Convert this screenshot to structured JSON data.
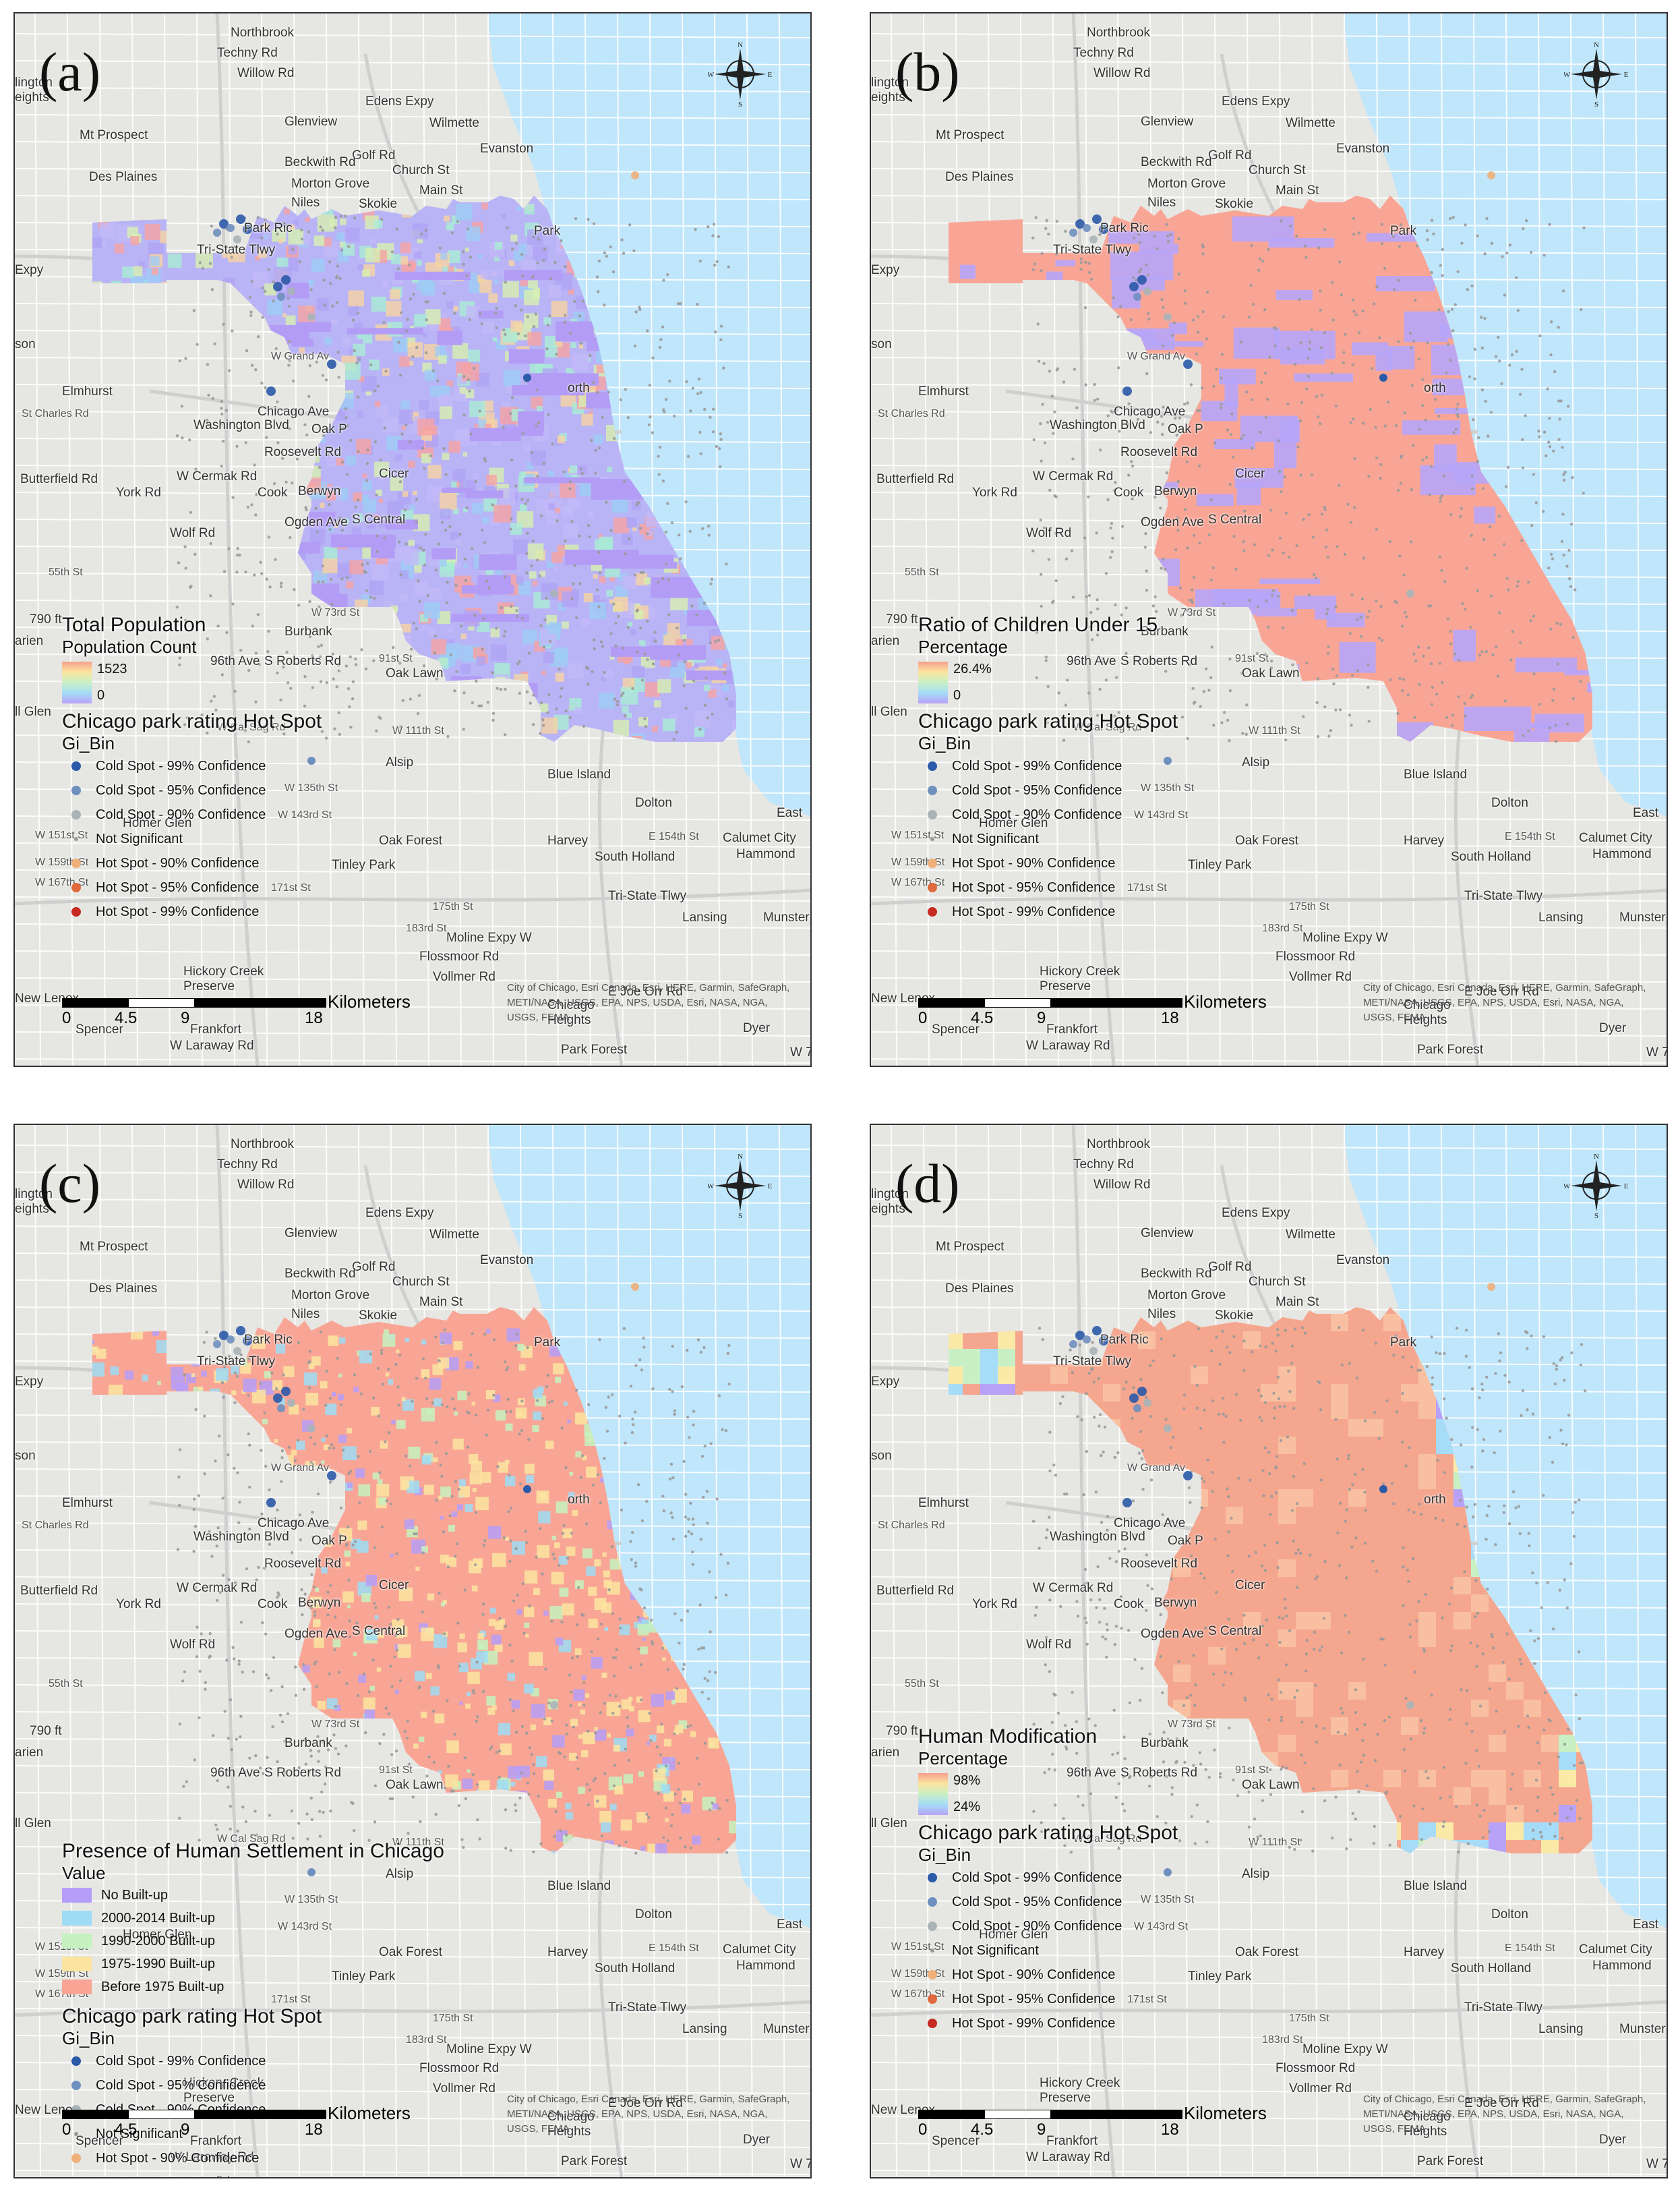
{
  "common": {
    "place_labels": {
      "northbrook": "Northbrook",
      "techny": "Techny Rd",
      "willow": "Willow Rd",
      "arlington": "lington\neights",
      "mt_prospect": "Mt Prospect",
      "glenview": "Glenview",
      "wilmette": "Wilmette",
      "edens": "Edens Expy",
      "evanston": "Evanston",
      "golf": "Golf Rd",
      "church": "Church St",
      "beckwith": "Beckwith Rd",
      "des_plaines": "Des Plaines",
      "morton": "Morton Grove",
      "main": "Main St",
      "niles": "Niles",
      "skokie": "Skokie",
      "park_ridge": "Park Ric",
      "park": "Park",
      "expy": "Expy",
      "tristate": "Tri-State Tlwy",
      "son": "son",
      "grand": "W Grand Av",
      "elmhurst": "Elmhurst",
      "orth": "orth",
      "st_charles": "St Charles Rd",
      "chicago_ave": "Chicago Ave",
      "washington": "Washington Blvd",
      "oak": "Oak P",
      "roosevelt": "Roosevelt Rd",
      "butterfield": "Butterfield Rd",
      "cermak": "W Cermak Rd",
      "cook": "Cook",
      "berwyn": "Berwyn",
      "cicero": "Cicer",
      "york": "York Rd",
      "wolf": "Wolf Rd",
      "ogden": "Ogden Ave",
      "s_central": "S Central",
      "st55": "55th St",
      "ft790": "790 ft",
      "darien": "arien",
      "st73": "W 73rd St",
      "burbank": "Burbank",
      "ave96": "96th Ave",
      "st91": "91st St",
      "roberts": "S Roberts Rd",
      "oak_lawn": "Oak Lawn",
      "glen": "ll Glen",
      "st111": "W 111th St",
      "calsag": "W Cal Sag Rd",
      "alsip": "Alsip",
      "blue_island": "Blue Island",
      "st135": "W 135th St",
      "st143": "W 143rd St",
      "dolton": "Dolton",
      "east": "East",
      "homer": "Homer Glen",
      "st151": "W 151st St",
      "st159": "W 159th St",
      "oak_forest": "Oak Forest",
      "harvey": "Harvey",
      "st154": "E 154th St",
      "calumet": "Calumet City",
      "hammond": "Hammond",
      "south_holland": "South Holland",
      "tinley": "Tinley Park",
      "st167": "W 167th St",
      "st171": "171st St",
      "tristate2": "Tri-State Tlwy",
      "lansing": "Lansing",
      "munster": "Munster",
      "st175": "175th St",
      "st183": "183rd St",
      "moline": "Moline Expy W",
      "flossmoor": "Flossmoor Rd",
      "vollmer": "Vollmer Rd",
      "hickory": "Hickory Creek\nPreserve",
      "new_lenox": "New Lenox",
      "chicago_heights": "Chicago\nHeights",
      "joe_orr": "E Joe Orr Rd",
      "laraway": "W Laraway Rd",
      "park_forest": "Park Forest",
      "dyer": "Dyer",
      "spencer": "Spencer",
      "frankfort": "Frankfort",
      "w7": "W 7"
    },
    "attribution": "City of Chicago, Esri Canada, Esri, HERE, Garmin, SafeGraph, METI/NASA, USGS, EPA, NPS, USDA, Esri, NASA, NGA, USGS, FEMA",
    "scale": {
      "ticks": [
        "0",
        "4.5",
        "9",
        "18"
      ],
      "unit": "Kilometers"
    },
    "compass": {
      "n": "N",
      "s": "S",
      "e": "E",
      "w": "W"
    },
    "gi": {
      "title": "Chicago park rating Hot Spot",
      "field": "Gi_Bin",
      "classes": [
        {
          "label": "Cold Spot - 99% Confidence",
          "color": "#2b5aa8"
        },
        {
          "label": "Cold Spot - 95% Confidence",
          "color": "#6f8fbf"
        },
        {
          "label": "Cold Spot - 90% Confidence",
          "color": "#a9b4b8"
        },
        {
          "label": "Not Significant",
          "color": "#9a9a9a"
        },
        {
          "label": "Hot Spot - 90% Confidence",
          "color": "#f0b07a"
        },
        {
          "label": "Hot Spot - 95% Confidence",
          "color": "#e06a3d"
        },
        {
          "label": "Hot Spot - 99% Confidence",
          "color": "#c62a22"
        }
      ]
    },
    "colors": {
      "water": "#bfe6fb",
      "land": "#e6e6e2",
      "road": "#ffffff"
    }
  },
  "panels": [
    {
      "letter": "(a)",
      "legend_title": "Total Population",
      "legend_subtitle": "Population Count",
      "ramp_high": "1523",
      "ramp_low": "0",
      "fill": "#aab4f8"
    },
    {
      "letter": "(b)",
      "legend_title": "Ratio of Children Under 15",
      "legend_subtitle": "Percentage",
      "ramp_high": "26.4%",
      "ramp_low": "0",
      "fill": "#f9a595"
    },
    {
      "letter": "(c)",
      "legend_title": "Presence of Human Settlement in Chicago",
      "legend_subtitle": "Value",
      "categories": [
        {
          "label": "No Built-up",
          "color": "#b69df8"
        },
        {
          "label": "2000-2014 Built-up",
          "color": "#9edcf5"
        },
        {
          "label": "1990-2000 Built-up",
          "color": "#c6f2c0"
        },
        {
          "label": "1975-1990 Built-up",
          "color": "#fbe4a0"
        },
        {
          "label": "Before 1975 Built-up",
          "color": "#f9a595"
        }
      ],
      "fill": "#f9a595"
    },
    {
      "letter": "(d)",
      "legend_title": "Human Modification",
      "legend_subtitle": "Percentage",
      "ramp_high": "98%",
      "ramp_low": "24%",
      "fill": "#f5a68f"
    }
  ]
}
